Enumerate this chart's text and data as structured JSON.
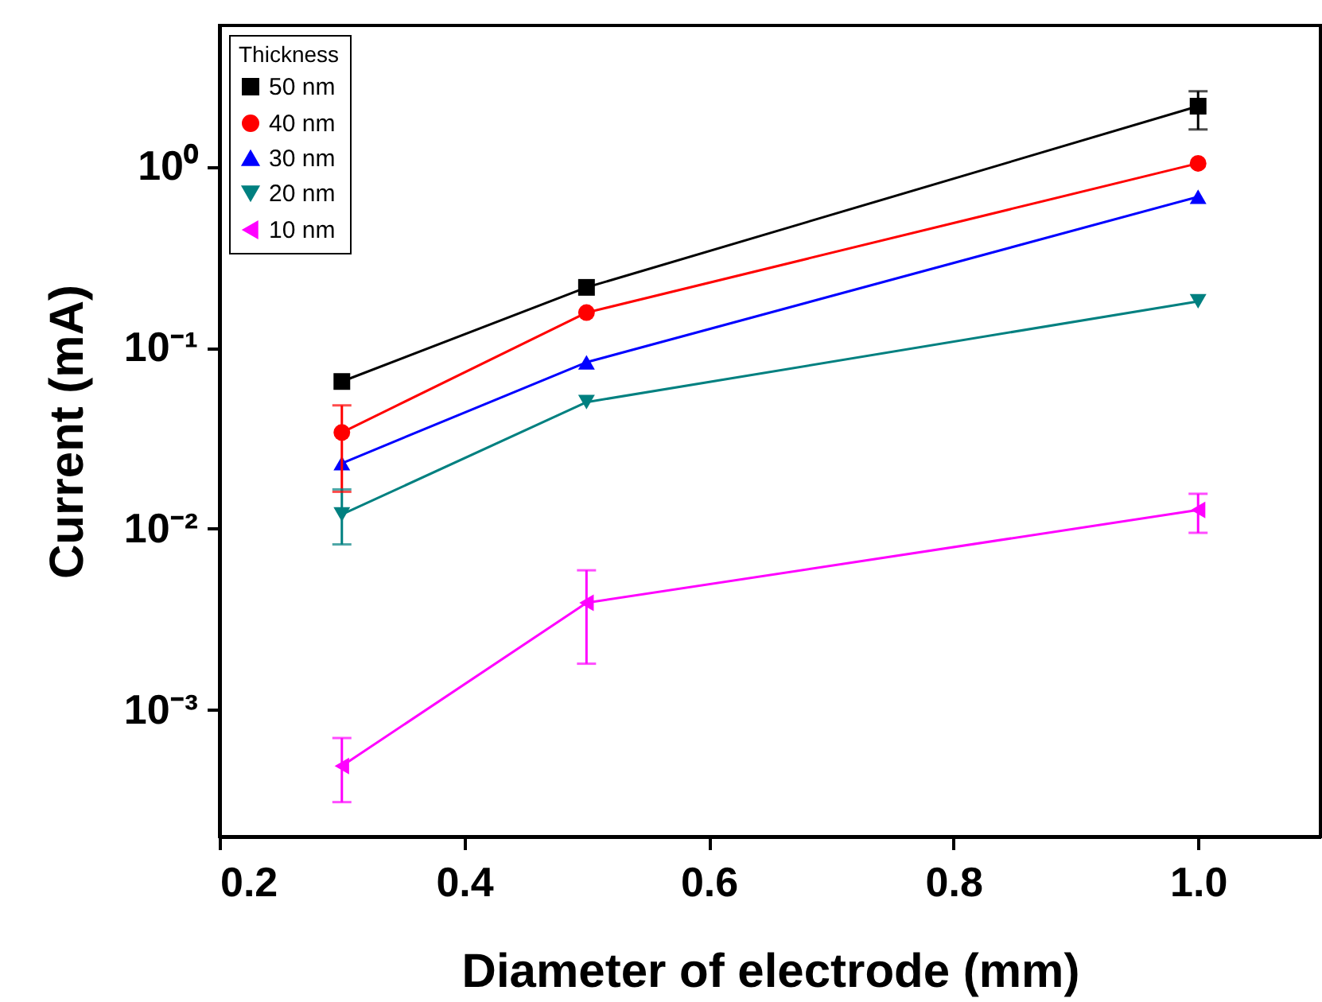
{
  "chart_data": {
    "type": "line",
    "xlabel": "Diameter of electrode (mm)",
    "ylabel": "Current (mA)",
    "legend_title": "Thickness",
    "legend": "top left",
    "log": true,
    "grid": false,
    "x": [
      0.3,
      0.5,
      1.0
    ],
    "xlim": [
      0.2,
      1.1
    ],
    "xticks": [
      {
        "value": 0.2,
        "label": "0.2"
      },
      {
        "value": 0.4,
        "label": "0.4"
      },
      {
        "value": 0.6,
        "label": "0.6"
      },
      {
        "value": 0.8,
        "label": "0.8"
      },
      {
        "value": 1.0,
        "label": "1.0"
      }
    ],
    "ylim": [
      0.0002,
      6
    ],
    "yticks": [
      {
        "value": 0.001,
        "label": "10⁻³"
      },
      {
        "value": 0.01,
        "label": "10⁻²"
      },
      {
        "value": 0.1,
        "label": "10⁻¹"
      },
      {
        "value": 1,
        "label": "10⁰"
      }
    ],
    "series": [
      {
        "name": "50 nm",
        "color": "#000000",
        "marker": "square",
        "values": [
          0.065,
          0.215,
          2.15
        ],
        "errors": [
          null,
          null,
          [
            1.6,
            2.6
          ]
        ]
      },
      {
        "name": "40 nm",
        "color": "#ff0000",
        "marker": "circle",
        "values": [
          0.034,
          0.156,
          1.04
        ],
        "errors": [
          [
            0.016,
            0.048
          ],
          null,
          null
        ]
      },
      {
        "name": "30 nm",
        "color": "#0000ff",
        "marker": "triangle-up",
        "values": [
          0.023,
          0.083,
          0.68
        ]
      },
      {
        "name": "20 nm",
        "color": "#008080",
        "marker": "triangle-down",
        "values": [
          0.012,
          0.05,
          0.18
        ],
        "errors": [
          [
            0.0082,
            0.0165
          ],
          null,
          null
        ]
      },
      {
        "name": "10 nm",
        "color": "#ff00ff",
        "marker": "triangle-left",
        "values": [
          0.00049,
          0.0039,
          0.0127
        ],
        "errors": [
          [
            0.00031,
            0.0007
          ],
          [
            0.0018,
            0.0059
          ],
          [
            0.0095,
            0.0156
          ]
        ]
      }
    ]
  }
}
